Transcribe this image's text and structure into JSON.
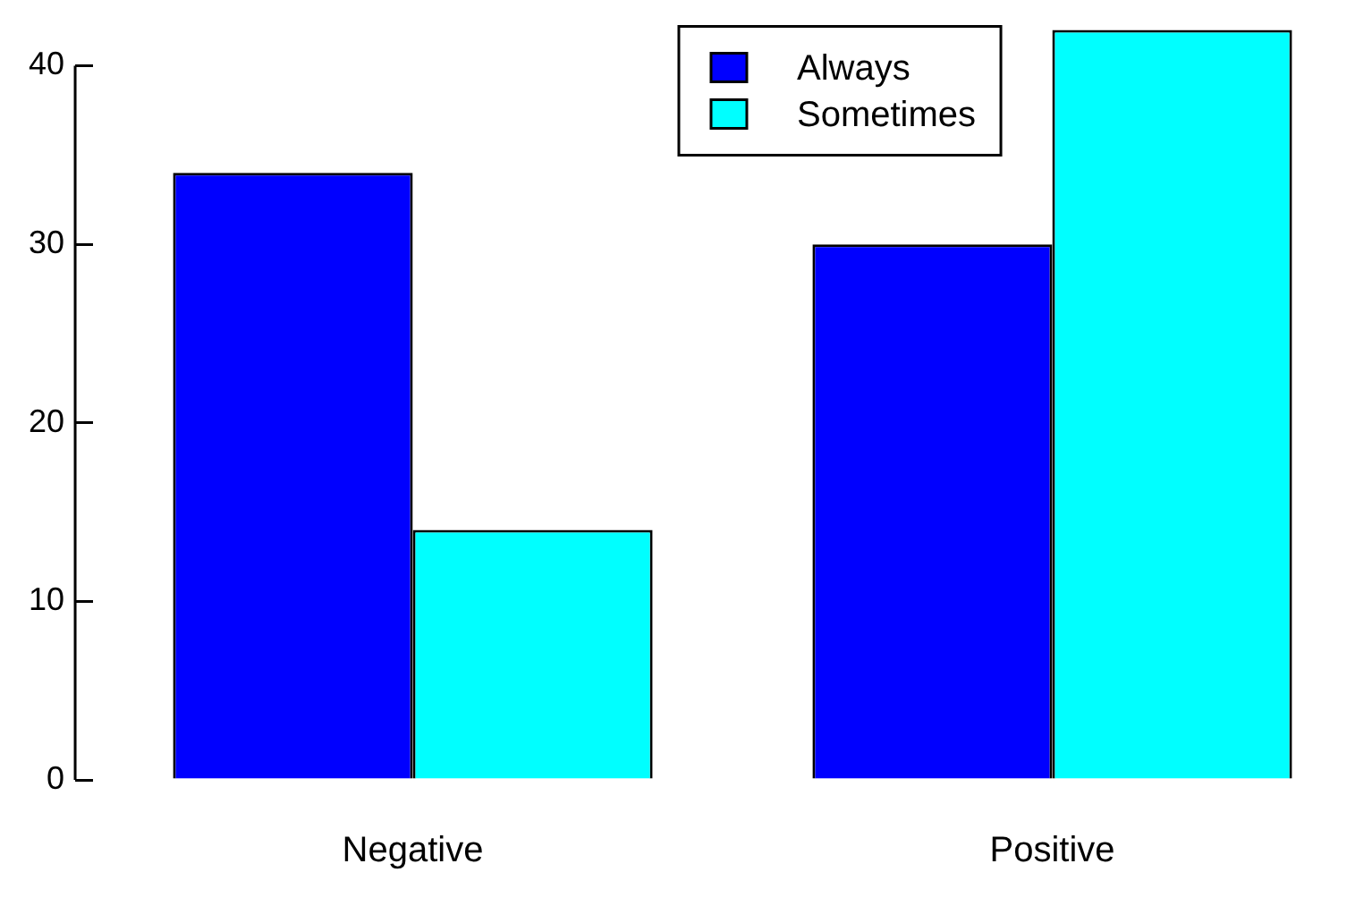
{
  "chart_data": {
    "type": "bar",
    "categories": [
      "Negative",
      "Positive"
    ],
    "series": [
      {
        "name": "Always",
        "color": "#0000ff",
        "values": [
          34,
          30
        ]
      },
      {
        "name": "Sometimes",
        "color": "#00ffff",
        "values": [
          14,
          42
        ]
      }
    ],
    "ylim": [
      0,
      42
    ],
    "yticks": [
      0,
      10,
      20,
      30,
      40
    ],
    "grid": false,
    "legend": "top"
  }
}
